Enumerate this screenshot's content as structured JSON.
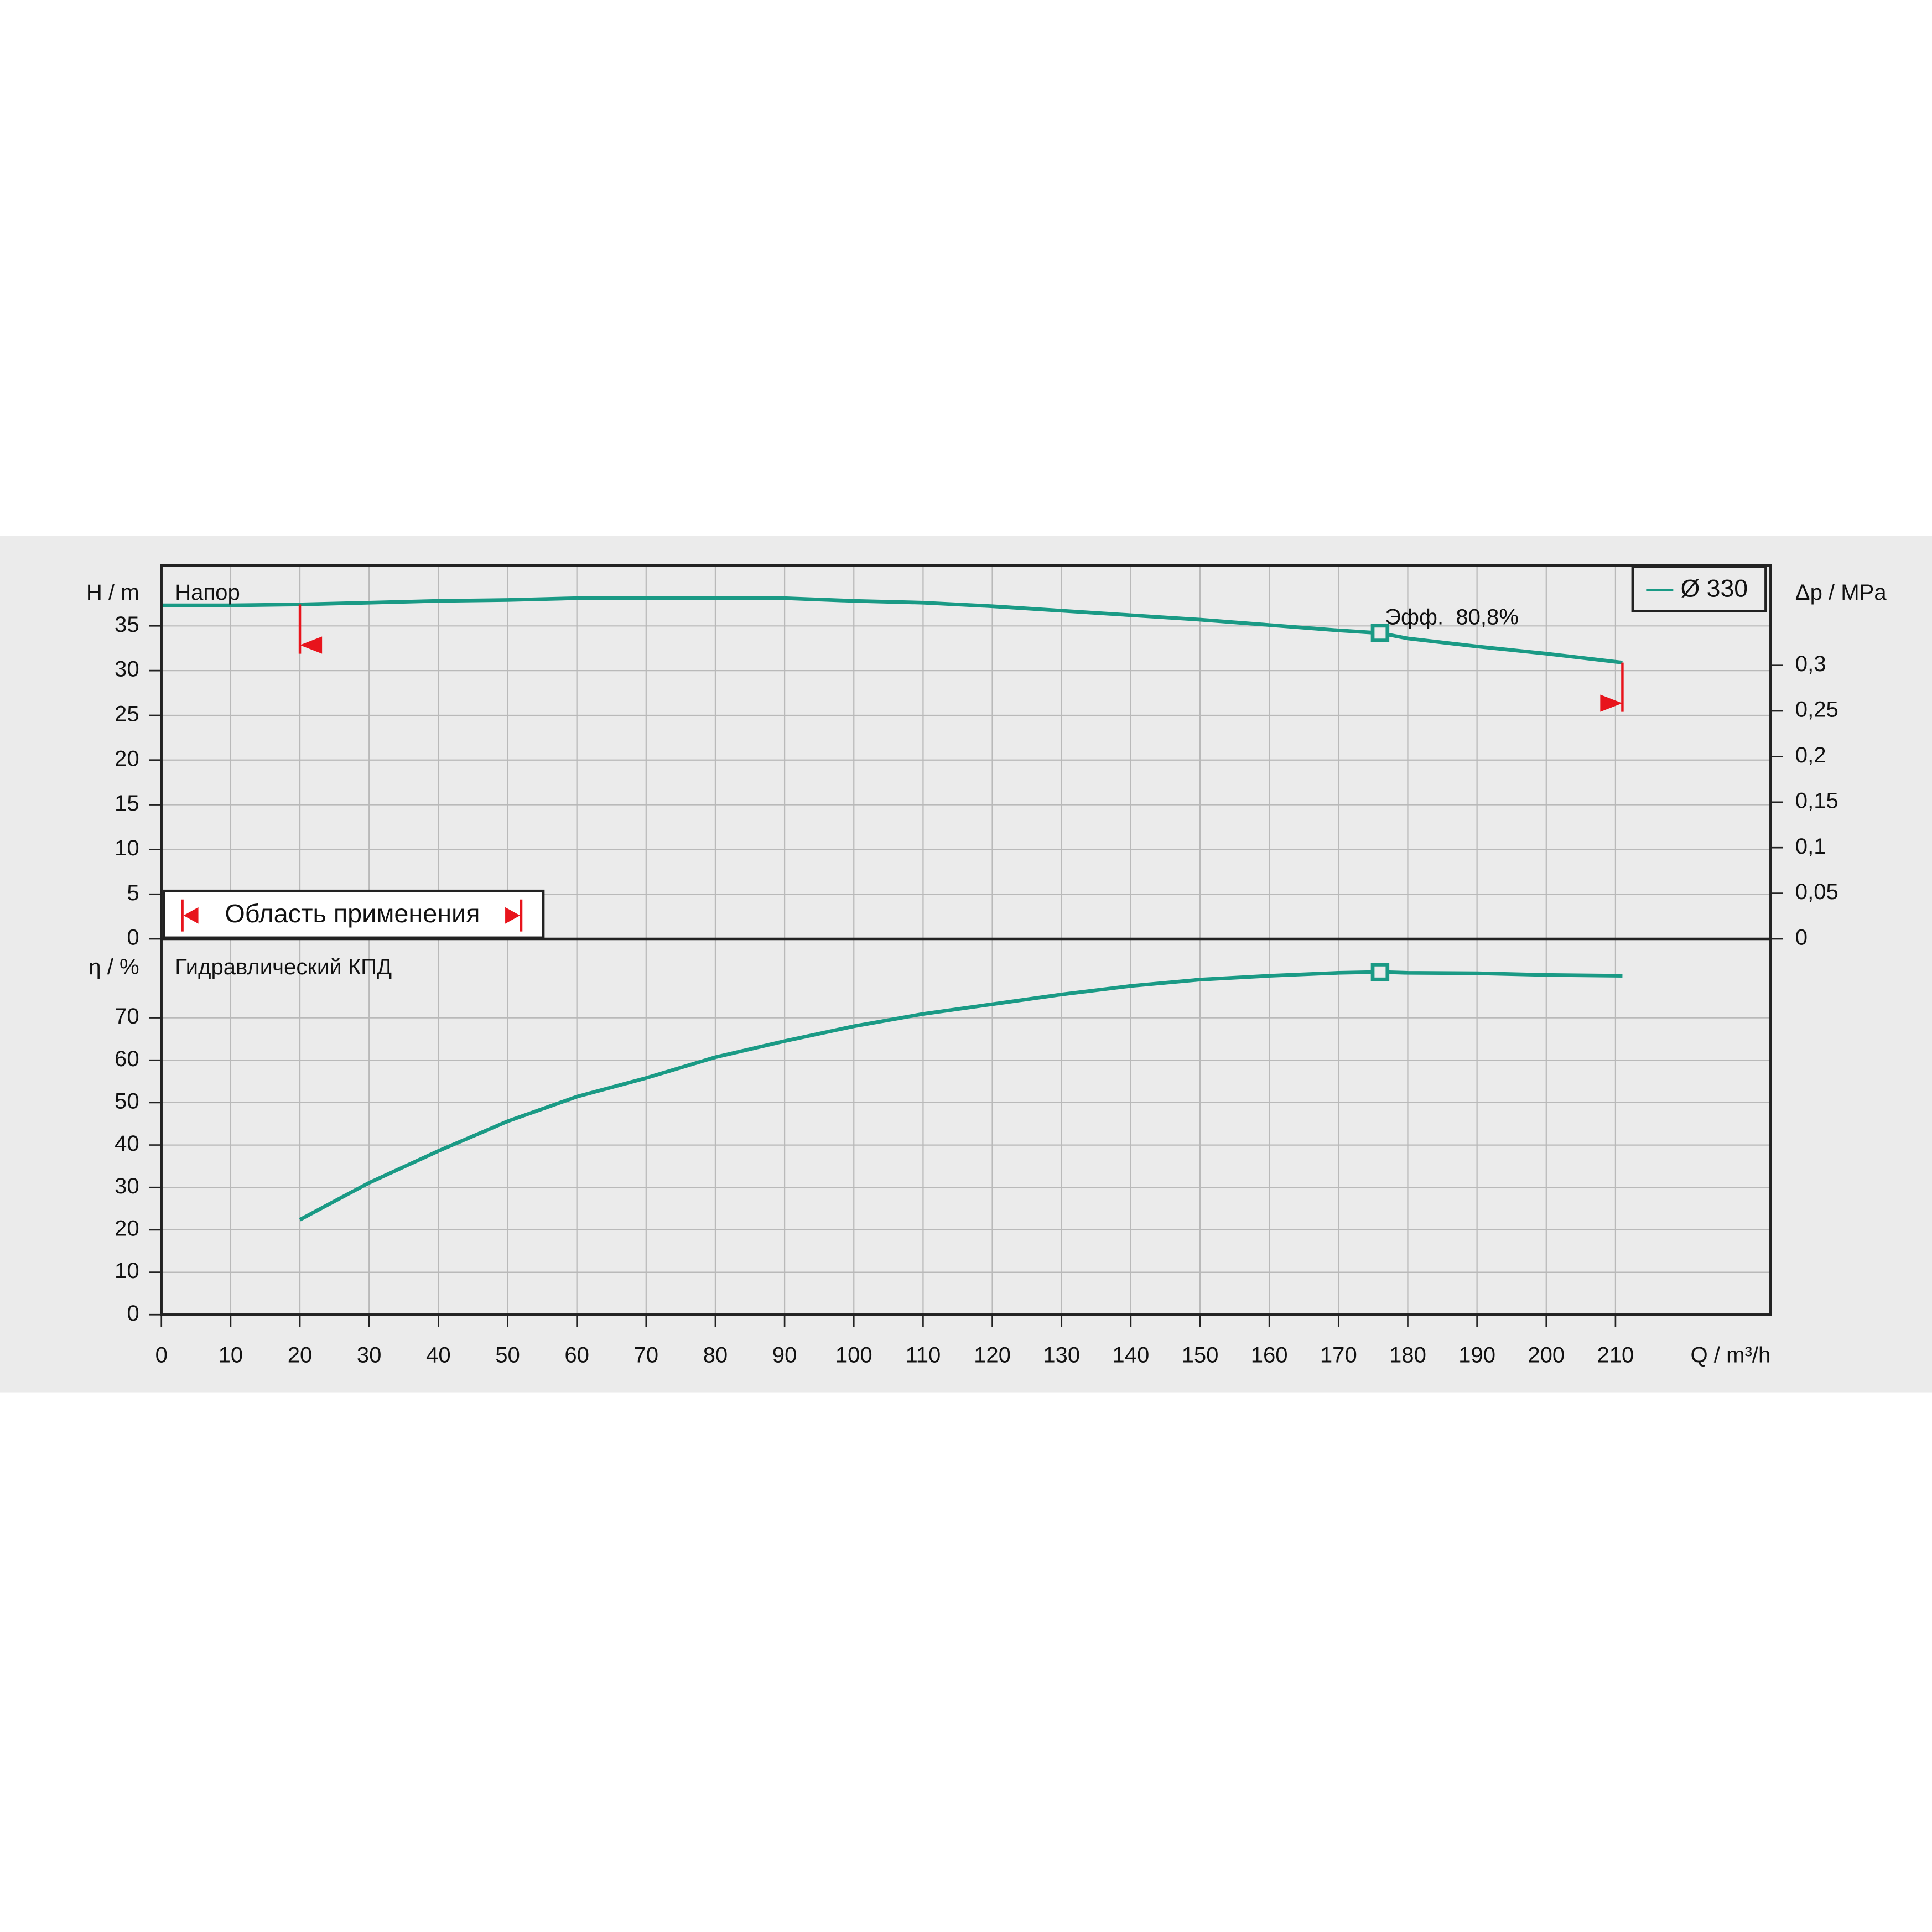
{
  "chart_data": [
    {
      "type": "line",
      "title": "Напор",
      "ylabel": "H / m",
      "y2label": "Δp / MPa",
      "x": [
        0,
        10,
        20,
        30,
        40,
        50,
        60,
        70,
        80,
        90,
        100,
        110,
        120,
        130,
        140,
        150,
        160,
        170,
        176,
        180,
        190,
        200,
        211
      ],
      "series": [
        {
          "name": "Ø 330",
          "color": "#1a9a85",
          "values": [
            37.3,
            37.3,
            37.4,
            37.6,
            37.8,
            37.9,
            38.1,
            38.1,
            38.1,
            38.1,
            37.8,
            37.6,
            37.2,
            36.7,
            36.2,
            35.7,
            35.1,
            34.5,
            34.2,
            33.6,
            32.7,
            31.9,
            30.9
          ]
        }
      ],
      "xlim": [
        0,
        232.4
      ],
      "ylim": [
        0,
        41.75
      ],
      "yticks": [
        0,
        5,
        10,
        15,
        20,
        25,
        30,
        35
      ],
      "y2lim": [
        0,
        0.4095
      ],
      "y2ticks": [
        0,
        {
          "value": 0.05,
          "label": "0,05"
        },
        {
          "value": 0.1,
          "label": "0,1"
        },
        {
          "value": 0.15,
          "label": "0,15"
        },
        {
          "value": 0.2,
          "label": "0,2"
        },
        {
          "value": 0.25,
          "label": "0,25"
        },
        {
          "value": 0.3,
          "label": "0,3"
        }
      ],
      "grid": true,
      "legend": "upper right",
      "bep": {
        "x": 176,
        "y": 34.2
      },
      "annotation": "Эфф.  80,8%",
      "operating_range": {
        "label": "Область применения",
        "xmin": 20,
        "xmax": 211,
        "color": "#e8141c"
      }
    },
    {
      "type": "line",
      "title": "Гидравлический КПД",
      "ylabel": "η / %",
      "xlabel": "Q / m³/h",
      "x": [
        20,
        30,
        40,
        50,
        60,
        70,
        80,
        90,
        100,
        110,
        120,
        130,
        140,
        150,
        160,
        170,
        176,
        180,
        190,
        200,
        211
      ],
      "series": [
        {
          "name": "Ø 330",
          "color": "#1a9a85",
          "values": [
            22.4,
            31.1,
            38.6,
            45.6,
            51.4,
            55.8,
            60.7,
            64.5,
            68,
            70.9,
            73.2,
            75.5,
            77.5,
            79,
            79.9,
            80.6,
            80.8,
            80.6,
            80.5,
            80.1,
            79.9
          ]
        }
      ],
      "xlim": [
        0,
        232.4
      ],
      "ylim": [
        0,
        88.6
      ],
      "yticks": [
        0,
        10,
        20,
        30,
        40,
        50,
        60,
        70
      ],
      "xticks": [
        0,
        10,
        20,
        30,
        40,
        50,
        60,
        70,
        80,
        90,
        100,
        110,
        120,
        130,
        140,
        150,
        160,
        170,
        180,
        190,
        200,
        210
      ],
      "grid": true,
      "bep": {
        "x": 176,
        "y": 80.8
      }
    }
  ]
}
